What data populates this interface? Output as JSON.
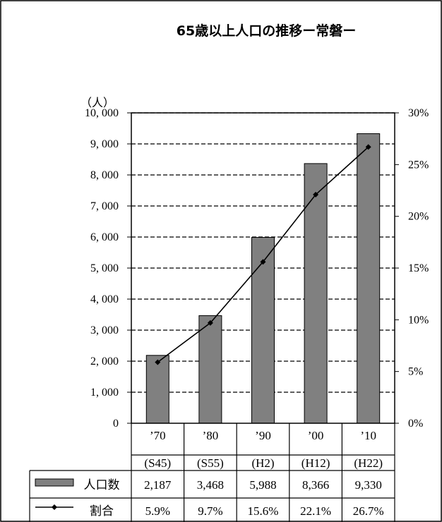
{
  "chart_data": {
    "type": "bar",
    "title": "65歳以上人口の推移ー常磐ー",
    "y_unit_label": "（人）",
    "categories": [
      {
        "year": "’70",
        "era": "(S45)"
      },
      {
        "year": "’80",
        "era": "(S55)"
      },
      {
        "year": "’90",
        "era": "(H2)"
      },
      {
        "year": "’00",
        "era": "(H12)"
      },
      {
        "year": "’10",
        "era": "(H22)"
      }
    ],
    "series": [
      {
        "name": "人口数",
        "type": "bar",
        "axis": "left",
        "color": "#808080",
        "values": [
          2187,
          3468,
          5988,
          8366,
          9330
        ],
        "value_labels": [
          "2,187",
          "3,468",
          "5,988",
          "8,366",
          "9,330"
        ]
      },
      {
        "name": "割合",
        "type": "line",
        "axis": "right",
        "color": "#000000",
        "values": [
          5.9,
          9.7,
          15.6,
          22.1,
          26.7
        ],
        "value_labels": [
          "5.9%",
          "9.7%",
          "15.6%",
          "22.1%",
          "26.7%"
        ]
      }
    ],
    "y_left": {
      "min": 0,
      "max": 10000,
      "step": 1000,
      "tick_labels": [
        "0",
        "1, 000",
        "2, 000",
        "3, 000",
        "4, 000",
        "5, 000",
        "6, 000",
        "7, 000",
        "8, 000",
        "9, 000",
        "10, 000"
      ]
    },
    "y_right": {
      "min": 0,
      "max": 30,
      "step": 5,
      "tick_labels": [
        "0%",
        "5%",
        "10%",
        "15%",
        "20%",
        "25%",
        "30%"
      ]
    },
    "grid": "dashed horizontal",
    "legend": "data table below chart"
  }
}
